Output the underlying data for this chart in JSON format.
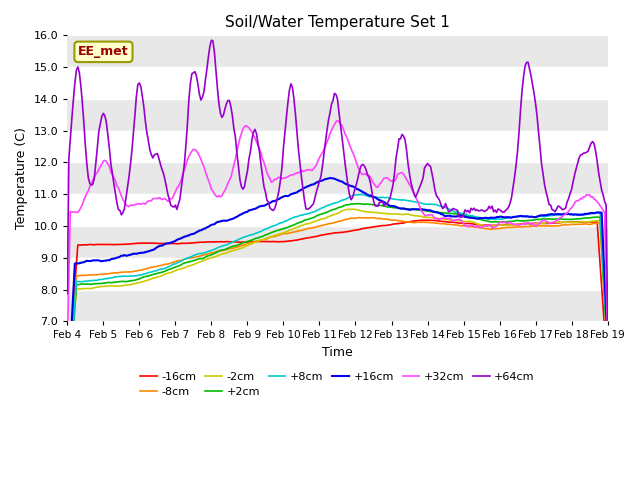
{
  "title": "Soil/Water Temperature Set 1",
  "xlabel": "Time",
  "ylabel": "Temperature (C)",
  "ylim": [
    7.0,
    16.0
  ],
  "yticks": [
    7.0,
    8.0,
    9.0,
    10.0,
    11.0,
    12.0,
    13.0,
    14.0,
    15.0,
    16.0
  ],
  "background_color": "#ffffff",
  "plot_bg_color": "#e8e8e8",
  "watermark": "EE_met",
  "series": {
    "-16cm": {
      "color": "#ff0000",
      "label": "-16cm"
    },
    "-8cm": {
      "color": "#ff8800",
      "label": "-8cm"
    },
    "-2cm": {
      "color": "#cccc00",
      "label": "-2cm"
    },
    "+2cm": {
      "color": "#00bb00",
      "label": "+2cm"
    },
    "+8cm": {
      "color": "#00cccc",
      "label": "+8cm"
    },
    "+16cm": {
      "color": "#0000ee",
      "label": "+16cm"
    },
    "+32cm": {
      "color": "#ff44ff",
      "label": "+32cm"
    },
    "+64cm": {
      "color": "#9900cc",
      "label": "+64cm"
    }
  },
  "n_points": 361,
  "x_start": 4.0,
  "x_end": 19.0,
  "xtick_labels": [
    "Feb 4",
    "Feb 5",
    "Feb 6",
    "Feb 7",
    "Feb 8",
    "Feb 9",
    "Feb 10",
    "Feb 11",
    "Feb 12",
    "Feb 13",
    "Feb 14",
    "Feb 15",
    "Feb 16",
    "Feb 17",
    "Feb 18",
    "Feb 19"
  ],
  "xtick_positions": [
    4,
    5,
    6,
    7,
    8,
    9,
    10,
    11,
    12,
    13,
    14,
    15,
    16,
    17,
    18,
    19
  ]
}
